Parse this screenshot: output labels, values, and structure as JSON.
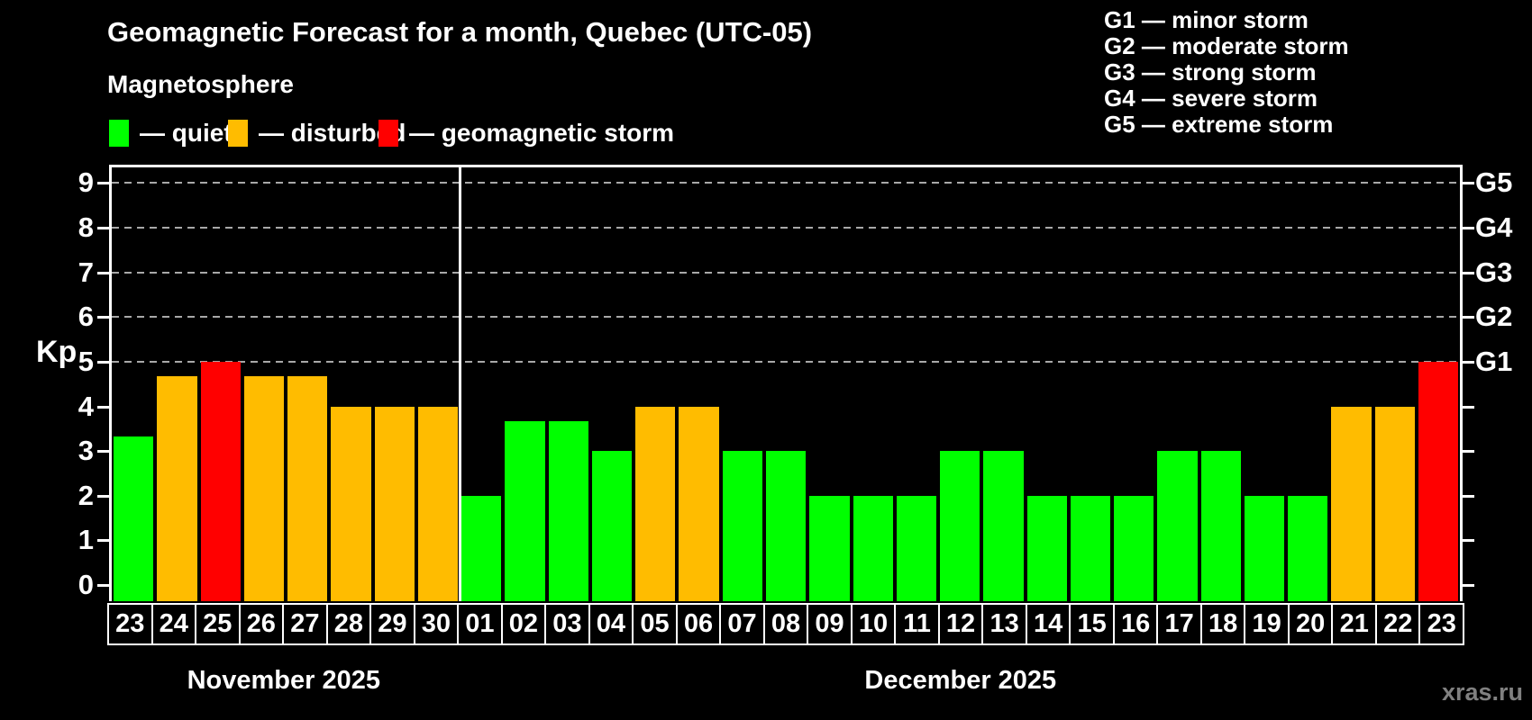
{
  "header": {
    "title": "Geomagnetic Forecast for a month, Quebec (UTC-05)",
    "subtitle": "Magnetosphere"
  },
  "legend": {
    "items": [
      {
        "name": "quiet",
        "label": "— quiet",
        "color": "#00ff00"
      },
      {
        "name": "disturbed",
        "label": "— disturbed",
        "color": "#ffbc00"
      },
      {
        "name": "storm",
        "label": "— geomagnetic storm",
        "color": "#ff0000"
      }
    ]
  },
  "g_legend": {
    "items": [
      "G1 — minor storm",
      "G2 — moderate storm",
      "G3 — strong storm",
      "G4 — severe storm",
      "G5 — extreme storm"
    ]
  },
  "watermark": "xras.ru",
  "colors": {
    "quiet": "#00ff00",
    "disturbed": "#ffbc00",
    "storm": "#ff0000",
    "grid": "#a8a8a8",
    "axis": "#ffffff",
    "background": "#000000"
  },
  "chart_data": {
    "type": "bar",
    "title": "Geomagnetic Forecast for a month, Quebec (UTC-05)",
    "ylabel": "Kp",
    "ylim": [
      0,
      9
    ],
    "grid": "dashed horizontal lines at Kp 5-9 only",
    "legend_position": "top-left",
    "kp_ticks": [
      0,
      1,
      2,
      3,
      4,
      5,
      6,
      7,
      8,
      9
    ],
    "g_levels": [
      {
        "kp": 5,
        "label": "G1"
      },
      {
        "kp": 6,
        "label": "G2"
      },
      {
        "kp": 7,
        "label": "G3"
      },
      {
        "kp": 8,
        "label": "G4"
      },
      {
        "kp": 9,
        "label": "G5"
      }
    ],
    "months": [
      {
        "label": "November 2025",
        "days": [
          {
            "day": "23",
            "kp": 3.33,
            "level": "quiet"
          },
          {
            "day": "24",
            "kp": 4.67,
            "level": "disturbed"
          },
          {
            "day": "25",
            "kp": 5.0,
            "level": "storm"
          },
          {
            "day": "26",
            "kp": 4.67,
            "level": "disturbed"
          },
          {
            "day": "27",
            "kp": 4.67,
            "level": "disturbed"
          },
          {
            "day": "28",
            "kp": 4.0,
            "level": "disturbed"
          },
          {
            "day": "29",
            "kp": 4.0,
            "level": "disturbed"
          },
          {
            "day": "30",
            "kp": 4.0,
            "level": "disturbed"
          }
        ]
      },
      {
        "label": "December 2025",
        "days": [
          {
            "day": "01",
            "kp": 2.0,
            "level": "quiet"
          },
          {
            "day": "02",
            "kp": 3.67,
            "level": "quiet"
          },
          {
            "day": "03",
            "kp": 3.67,
            "level": "quiet"
          },
          {
            "day": "04",
            "kp": 3.0,
            "level": "quiet"
          },
          {
            "day": "05",
            "kp": 4.0,
            "level": "disturbed"
          },
          {
            "day": "06",
            "kp": 4.0,
            "level": "disturbed"
          },
          {
            "day": "07",
            "kp": 3.0,
            "level": "quiet"
          },
          {
            "day": "08",
            "kp": 3.0,
            "level": "quiet"
          },
          {
            "day": "09",
            "kp": 2.0,
            "level": "quiet"
          },
          {
            "day": "10",
            "kp": 2.0,
            "level": "quiet"
          },
          {
            "day": "11",
            "kp": 2.0,
            "level": "quiet"
          },
          {
            "day": "12",
            "kp": 3.0,
            "level": "quiet"
          },
          {
            "day": "13",
            "kp": 3.0,
            "level": "quiet"
          },
          {
            "day": "14",
            "kp": 2.0,
            "level": "quiet"
          },
          {
            "day": "15",
            "kp": 2.0,
            "level": "quiet"
          },
          {
            "day": "16",
            "kp": 2.0,
            "level": "quiet"
          },
          {
            "day": "17",
            "kp": 3.0,
            "level": "quiet"
          },
          {
            "day": "18",
            "kp": 3.0,
            "level": "quiet"
          },
          {
            "day": "19",
            "kp": 2.0,
            "level": "quiet"
          },
          {
            "day": "20",
            "kp": 2.0,
            "level": "quiet"
          },
          {
            "day": "21",
            "kp": 4.0,
            "level": "disturbed"
          },
          {
            "day": "22",
            "kp": 4.0,
            "level": "disturbed"
          },
          {
            "day": "23",
            "kp": 5.0,
            "level": "storm"
          }
        ]
      }
    ]
  }
}
